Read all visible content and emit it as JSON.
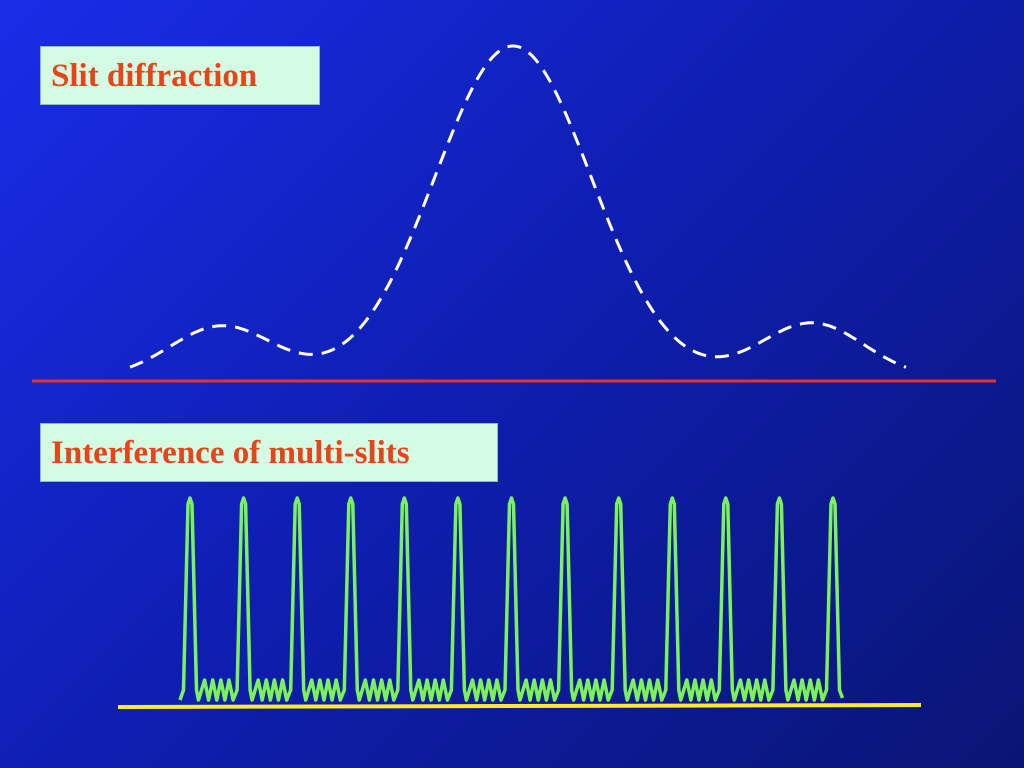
{
  "labels": {
    "slit_diffraction": "Slit diffraction",
    "interference": "Interference of multi-slits"
  },
  "colors": {
    "label_text": "#e8441a",
    "label_bg": "#d4fbe3",
    "diffraction_curve": "#ffffff",
    "diffraction_baseline": "#e4332f",
    "interference_curve": "#7cf25a",
    "interference_baseline": "#ffea2e"
  },
  "interference": {
    "principal_peaks": 13,
    "secondary_maxima_between_peaks": 4
  }
}
